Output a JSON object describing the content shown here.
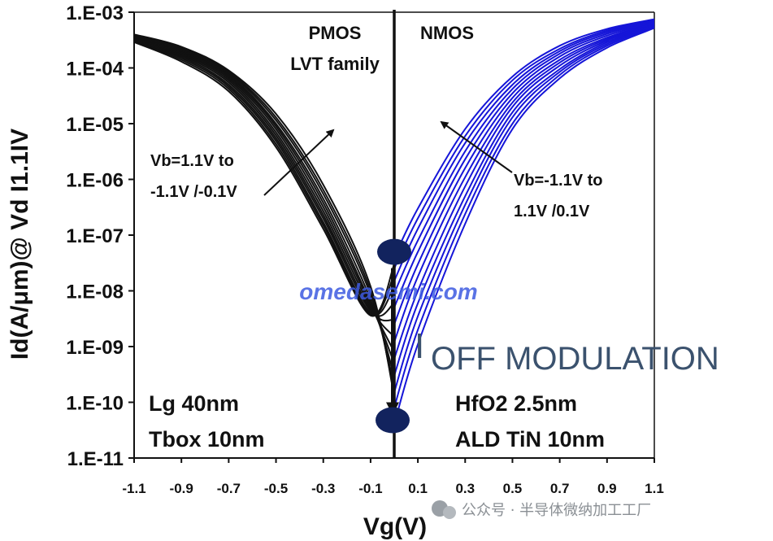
{
  "chart_data": {
    "type": "line",
    "xlabel": "Vg(V)",
    "ylabel": "Id(A/μm)@ Vd I1.1IV",
    "xlim": [
      -1.1,
      1.1
    ],
    "ylim": [
      1e-11,
      0.001
    ],
    "y_scale": "log",
    "x_tick_labels": [
      "-1.1",
      "-0.9",
      "-0.7",
      "-0.5",
      "-0.3",
      "-0.1",
      "0.1",
      "0.3",
      "0.5",
      "0.7",
      "0.9",
      "1.1"
    ],
    "y_tick_labels": [
      "1.E-11",
      "1.E-10",
      "1.E-09",
      "1.E-08",
      "1.E-07",
      "1.E-06",
      "1.E-05",
      "1.E-04",
      "1.E-03"
    ],
    "series_colors": {
      "pmos": "#111111",
      "nmos": "#1515d8"
    },
    "pmos": {
      "label_line1": "PMOS",
      "label_line2": "LVT family",
      "vb_line1": "Vb=1.1V to",
      "vb_line2": "-1.1V /-0.1V",
      "curves_x": [
        -1.1,
        -0.9,
        -0.7,
        -0.5,
        -0.3,
        -0.1,
        0.0
      ],
      "curves_y": [
        [
          0.0004,
          0.00024,
          9e-05,
          1.5e-05,
          8e-07,
          1.2e-08,
          1.3e-10
        ],
        [
          0.00039,
          0.00023,
          8.5e-05,
          1.3e-05,
          6.5e-07,
          1e-08,
          1.5e-10
        ],
        [
          0.00038,
          0.00022,
          8e-05,
          1.15e-05,
          5.5e-07,
          8.5e-09,
          2e-10
        ],
        [
          0.00037,
          0.00021,
          7.5e-05,
          1e-05,
          4.5e-07,
          7e-09,
          3e-10
        ],
        [
          0.00036,
          0.0002,
          7e-05,
          9e-06,
          3.8e-07,
          6e-09,
          5e-10
        ],
        [
          0.00035,
          0.00019,
          6.5e-05,
          8e-06,
          3.2e-07,
          5.5e-09,
          8e-10
        ],
        [
          0.00034,
          0.00018,
          6e-05,
          7e-06,
          2.7e-07,
          5e-09,
          1.5e-09
        ],
        [
          0.00033,
          0.00017,
          5.5e-05,
          6.2e-06,
          2.3e-07,
          4.6e-09,
          3e-09
        ],
        [
          0.00032,
          0.00016,
          5e-05,
          5.5e-06,
          2e-07,
          4.3e-09,
          6e-09
        ],
        [
          0.00031,
          0.00015,
          4.6e-05,
          4.9e-06,
          1.7e-07,
          4e-09,
          1.2e-08
        ],
        [
          0.0003,
          0.00014,
          4.2e-05,
          4.3e-06,
          1.5e-07,
          3.8e-09,
          2e-08
        ],
        [
          0.00029,
          0.00013,
          3.8e-05,
          3.8e-06,
          1.3e-07,
          3.6e-09,
          3e-08
        ]
      ]
    },
    "nmos": {
      "label": "NMOS",
      "vb_line1": "Vb=-1.1V to",
      "vb_line2": "1.1V /0.1V",
      "curves_x": [
        0.0,
        0.1,
        0.3,
        0.5,
        0.7,
        0.9,
        1.1
      ],
      "curves_y": [
        [
          4e-08,
          3e-07,
          8e-06,
          7e-05,
          0.00025,
          0.0005,
          0.00075
        ],
        [
          2.5e-08,
          2e-07,
          6e-06,
          6e-05,
          0.00022,
          0.00047,
          0.00072
        ],
        [
          1.5e-08,
          1.3e-07,
          4.5e-06,
          5e-05,
          0.0002,
          0.00044,
          0.0007
        ],
        [
          9e-09,
          8e-08,
          3.2e-06,
          4.2e-05,
          0.00018,
          0.00041,
          0.00068
        ],
        [
          5e-09,
          5e-08,
          2.3e-06,
          3.5e-05,
          0.00016,
          0.00038,
          0.00066
        ],
        [
          2.5e-09,
          3e-08,
          1.6e-06,
          2.9e-05,
          0.00014,
          0.00035,
          0.00064
        ],
        [
          1.2e-09,
          1.8e-08,
          1.1e-06,
          2.4e-05,
          0.000125,
          0.00033,
          0.00062
        ],
        [
          6e-10,
          1e-08,
          7.5e-07,
          2e-05,
          0.00011,
          0.00031,
          0.0006
        ],
        [
          3e-10,
          6e-09,
          5e-07,
          1.6e-05,
          9.5e-05,
          0.00029,
          0.00058
        ],
        [
          1.5e-10,
          3.5e-09,
          3.5e-07,
          1.3e-05,
          8.5e-05,
          0.00027,
          0.00056
        ],
        [
          8e-11,
          2e-09,
          2.4e-07,
          1e-05,
          7.5e-05,
          0.00025,
          0.00054
        ],
        [
          4e-11,
          1.1e-09,
          1.6e-07,
          8e-06,
          6.5e-05,
          0.00023,
          0.00052
        ]
      ]
    },
    "ioff_top": 5e-08,
    "ioff_bottom": 1e-10,
    "ioff_label_big": "I",
    "ioff_label": "OFF MODULATION",
    "left_note_line1": "Lg 40nm",
    "left_note_line2": "Tbox 10nm",
    "right_note_line1": "HfO2 2.5nm",
    "right_note_line2": "ALD TiN 10nm",
    "watermark": "omedasemi.com",
    "footer_watermark": "公众号 · 半导体微纳加工工厂"
  }
}
